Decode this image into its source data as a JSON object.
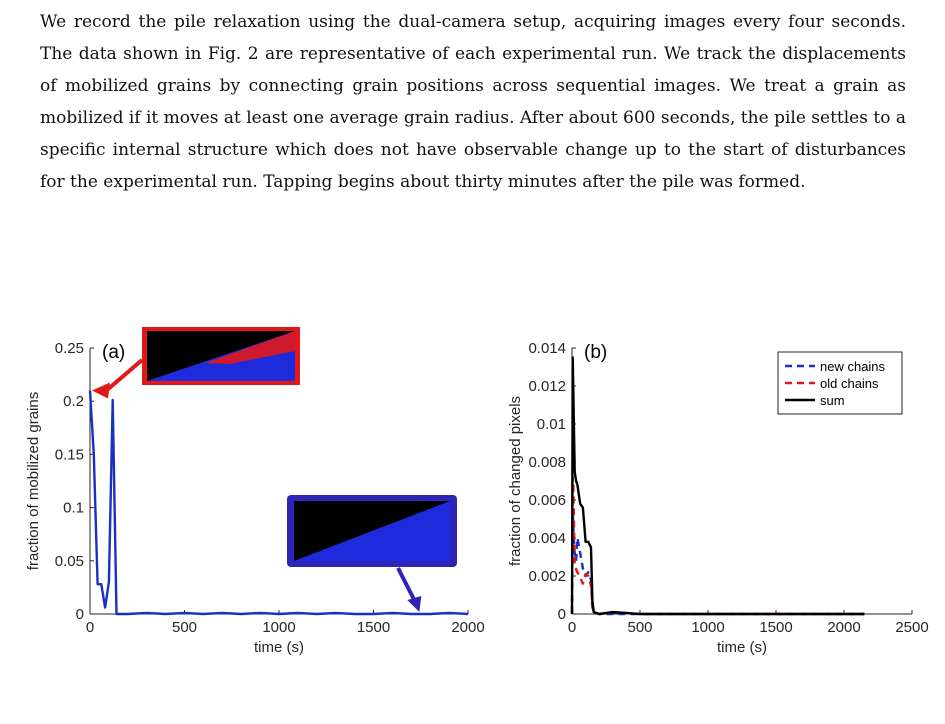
{
  "paragraph": "We record the pile relaxation using the dual-camera setup, acquiring images every four seconds. The data shown in Fig. 2 are representative of each experimental run. We track the displacements of mobilized grains by connecting grain positions across sequential images. We treat a grain as mobilized if it moves at least one average grain radius. After about 600 seconds, the pile settles to a specific internal structure which does not have observable change up to the start of disturbances for the experimental run. Tapping begins about thirty minutes after the pile was formed.",
  "chart_data": [
    {
      "type": "line",
      "panel_label": "(a)",
      "xlabel": "time (s)",
      "ylabel": "fraction of mobilized grains",
      "xlim": [
        0,
        2000
      ],
      "ylim": [
        0,
        0.25
      ],
      "xticks": [
        "0",
        "500",
        "1000",
        "1500",
        "2000"
      ],
      "yticks": [
        "0",
        "0.05",
        "0.1",
        "0.15",
        "0.2",
        "0.25"
      ],
      "series": [
        {
          "color": "#1a2fc4",
          "x": [
            0,
            20,
            40,
            60,
            80,
            100,
            120,
            140,
            160,
            200,
            300,
            400,
            500,
            600,
            700,
            800,
            900,
            1000,
            1100,
            1200,
            1300,
            1400,
            1500,
            1600,
            1700,
            1800,
            1900,
            2000
          ],
          "y": [
            0.21,
            0.15,
            0.028,
            0.028,
            0.006,
            0.03,
            0.201,
            0.0,
            0.0,
            0.0,
            0.001,
            0.0,
            0.001,
            0.0,
            0.001,
            0.0,
            0.001,
            0.0,
            0.001,
            0.0,
            0.001,
            0.0,
            0.0,
            0.001,
            0.0,
            0.0,
            0.001,
            0.0
          ]
        }
      ],
      "insets": [
        {
          "frame_color": "#e01818",
          "fill_color": "#1e2bdc",
          "highlight_color": "#e01818",
          "points_at": [
            0,
            0.21
          ]
        },
        {
          "frame_color": "#2e24b8",
          "fill_color": "#1e2bdc",
          "points_at": [
            1700,
            0.0
          ]
        }
      ]
    },
    {
      "type": "line",
      "panel_label": "(b)",
      "xlabel": "time (s)",
      "ylabel": "fraction of changed pixels",
      "xlim": [
        0,
        2500
      ],
      "ylim": [
        0,
        0.014
      ],
      "xticks": [
        "0",
        "500",
        "1000",
        "1500",
        "2000",
        "2500"
      ],
      "yticks": [
        "0",
        "0.002",
        "0.004",
        "0.006",
        "0.008",
        "0.01",
        "0.012",
        "0.014"
      ],
      "legend": [
        "new chains",
        "old chains",
        "sum"
      ],
      "legend_position": "top-right",
      "series": [
        {
          "name": "new chains",
          "color": "#1a2fc4",
          "dash": "dashed",
          "x": [
            0,
            5,
            10,
            20,
            30,
            40,
            60,
            80,
            100,
            120,
            140,
            150,
            160,
            200,
            300,
            500,
            1000,
            1500,
            2150
          ],
          "y": [
            0.0,
            0.0055,
            0.0045,
            0.0032,
            0.0028,
            0.004,
            0.0032,
            0.0024,
            0.002,
            0.0022,
            0.0018,
            0.0003,
            0.0001,
            0.0,
            0.0,
            0.0,
            0.0,
            0.0,
            0.0
          ]
        },
        {
          "name": "old chains",
          "color": "#e01818",
          "dash": "dashed",
          "x": [
            0,
            5,
            10,
            20,
            40,
            60,
            80,
            100,
            120,
            140,
            150,
            160,
            200,
            300,
            500,
            1000,
            1500,
            2150
          ],
          "y": [
            0.0,
            0.0072,
            0.0066,
            0.0025,
            0.0022,
            0.0019,
            0.0016,
            0.0021,
            0.002,
            0.0015,
            0.0004,
            0.0001,
            0.0,
            0.0001,
            0.0,
            0.0,
            0.0,
            0.0
          ]
        },
        {
          "name": "sum",
          "color": "#000000",
          "dash": "solid",
          "x": [
            0,
            5,
            10,
            20,
            30,
            40,
            60,
            80,
            100,
            120,
            140,
            150,
            160,
            200,
            300,
            500,
            1000,
            1500,
            2150
          ],
          "y": [
            0.0,
            0.0135,
            0.0115,
            0.0075,
            0.007,
            0.0068,
            0.0058,
            0.0056,
            0.0038,
            0.0038,
            0.0035,
            0.0007,
            0.0001,
            0.0,
            0.0001,
            0.0,
            0.0,
            0.0,
            0.0
          ]
        }
      ]
    }
  ],
  "caption_marker": ""
}
